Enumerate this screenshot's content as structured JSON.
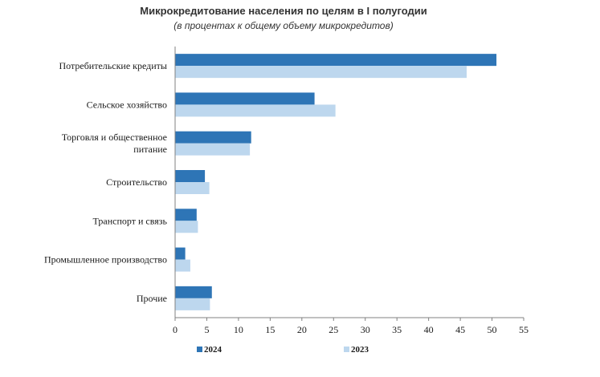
{
  "chart_data": {
    "type": "bar",
    "orientation": "horizontal",
    "title": "Микрокредитование населения по целям в I полугодии",
    "subtitle": "(в процентах к общему объему микрокредитов)",
    "categories": [
      [
        "Потребительские  кредиты"
      ],
      [
        "Сельское хозяйство"
      ],
      [
        "Торговля и общественное",
        "питание"
      ],
      [
        "Строительство"
      ],
      [
        "Транспорт и связь"
      ],
      [
        "Промышленное производство"
      ],
      [
        "Прочие"
      ]
    ],
    "series": [
      {
        "name": "2024",
        "color": "#2e75b6",
        "values": [
          50.7,
          22.0,
          12.0,
          4.7,
          3.4,
          1.6,
          5.8
        ]
      },
      {
        "name": "2023",
        "color": "#bdd7ee",
        "values": [
          46.0,
          25.3,
          11.8,
          5.4,
          3.6,
          2.4,
          5.5
        ]
      }
    ],
    "xlim": [
      0,
      55
    ],
    "xticks": [
      "0",
      "5",
      "10",
      "15",
      "20",
      "25",
      "30",
      "35",
      "40",
      "45",
      "50",
      "55"
    ],
    "legend_position": "bottom",
    "grid": false
  }
}
